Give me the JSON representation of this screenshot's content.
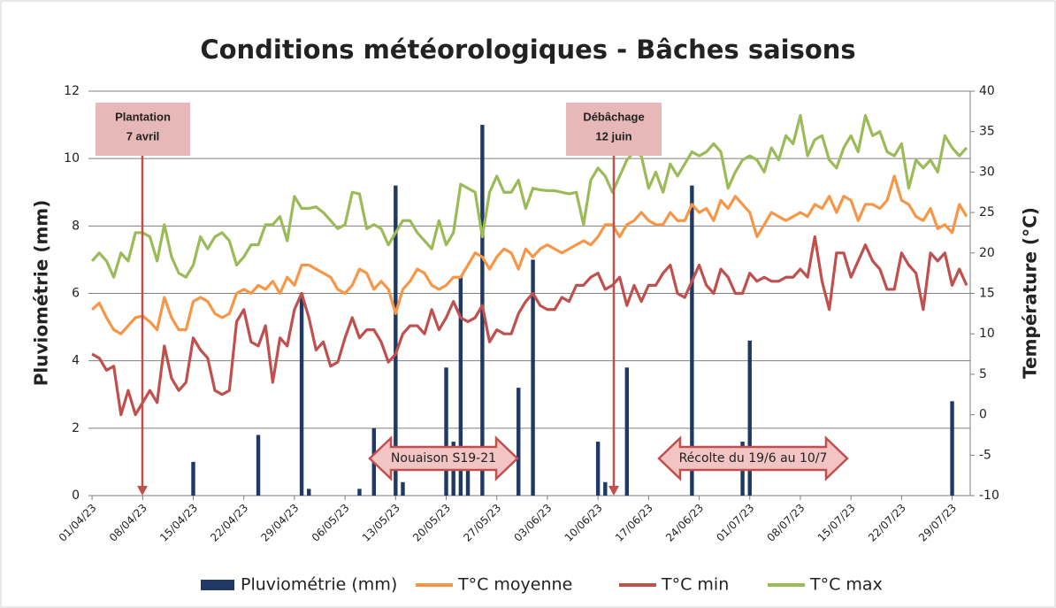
{
  "chart_data": {
    "type": "bar_line",
    "title": "Conditions météorologiques - Bâches saisons",
    "y_label": "Pluviométrie (mm)",
    "y2_label": "Température (°C)",
    "categories": [
      "01/04/23",
      null,
      null,
      null,
      null,
      null,
      null,
      "08/04/23",
      null,
      null,
      null,
      null,
      null,
      null,
      "15/04/23",
      null,
      null,
      null,
      null,
      null,
      null,
      "22/04/23",
      null,
      null,
      null,
      null,
      null,
      null,
      "29/04/23",
      null,
      null,
      null,
      null,
      null,
      null,
      "06/05/23",
      null,
      null,
      null,
      null,
      null,
      null,
      "13/05/23",
      null,
      null,
      null,
      null,
      null,
      null,
      "20/05/23",
      null,
      null,
      null,
      null,
      null,
      null,
      "27/05/23",
      null,
      null,
      null,
      null,
      null,
      null,
      "03/06/23",
      null,
      null,
      null,
      null,
      null,
      null,
      "10/06/23",
      null,
      null,
      null,
      null,
      null,
      null,
      "17/06/23",
      null,
      null,
      null,
      null,
      null,
      null,
      "24/06/23",
      null,
      null,
      null,
      null,
      null,
      null,
      "01/07/23",
      null,
      null,
      null,
      null,
      null,
      null,
      "08/07/23",
      null,
      null,
      null,
      null,
      null,
      null,
      "15/07/23",
      null,
      null,
      null,
      null,
      null,
      null,
      "22/07/23",
      null,
      null,
      null,
      null,
      null,
      null,
      "29/07/23",
      null,
      null
    ],
    "series": [
      {
        "name": "Pluviométrie (mm)",
        "kind": "bar",
        "color": "#1f3864",
        "values": [
          0,
          0,
          0,
          0,
          0,
          0,
          0,
          0,
          0,
          0,
          0,
          0,
          0,
          0,
          1,
          0,
          0,
          0,
          0,
          0,
          0,
          0,
          0,
          1.8,
          0,
          0,
          0,
          0,
          0,
          6,
          0.2,
          0,
          0,
          0,
          0,
          0,
          0,
          0.2,
          0,
          2,
          0,
          0,
          9.2,
          0.4,
          0,
          0,
          0,
          0,
          0,
          3.8,
          1.6,
          6.5,
          1,
          0,
          11,
          0,
          0,
          0,
          0,
          3.2,
          0,
          7,
          0,
          0,
          0,
          0,
          0,
          0,
          0,
          0,
          1.6,
          0.4,
          0,
          0,
          3.8,
          0,
          0,
          0,
          0,
          0,
          0,
          0,
          0,
          9.2,
          0,
          0,
          0,
          0,
          0,
          0,
          1.6,
          4.6,
          0,
          0,
          0,
          0,
          0,
          0,
          0,
          0,
          0,
          0,
          0,
          0,
          0,
          0,
          0,
          0,
          0,
          0,
          0,
          0,
          0,
          0,
          0,
          0,
          0,
          0,
          0,
          2.8,
          0,
          0
        ]
      },
      {
        "name": "T°C moyenne",
        "kind": "line",
        "axis": "y2",
        "color": "#f79646",
        "values": [
          13,
          13.8,
          12,
          10.5,
          10,
          11,
          12,
          12.2,
          11.5,
          10.5,
          14.5,
          12,
          10.5,
          10.5,
          14,
          14.5,
          14,
          12.5,
          12,
          12.5,
          15,
          15.5,
          15,
          16,
          15.5,
          16.5,
          15,
          17,
          16,
          18.5,
          18.5,
          18,
          17.5,
          17,
          15.5,
          15,
          16,
          18,
          17.5,
          15.5,
          16.5,
          15.5,
          12.5,
          15.5,
          16.5,
          18,
          17.5,
          16,
          15.5,
          16,
          17,
          17,
          18.5,
          20,
          19.5,
          18,
          19.5,
          20.5,
          20,
          18,
          20.5,
          19.5,
          20.5,
          21,
          20.5,
          20,
          20.5,
          21,
          21.5,
          21,
          22,
          23.5,
          23.5,
          22,
          23.5,
          24,
          25,
          24,
          23.5,
          23.5,
          25,
          24,
          24,
          26,
          25,
          25.5,
          24,
          26.5,
          25.5,
          27,
          26,
          25,
          22,
          23.5,
          25,
          24.5,
          24,
          24.5,
          25,
          24.5,
          26,
          25.5,
          27,
          25,
          27,
          26.5,
          24,
          26,
          26,
          25.5,
          26.5,
          29.5,
          26.5,
          26,
          24.5,
          24,
          25.5,
          23,
          23.5,
          22.5,
          26,
          24.5
        ]
      },
      {
        "name": "T°C min",
        "kind": "line",
        "axis": "y2",
        "color": "#c0504d",
        "values": [
          7.5,
          7,
          5.5,
          6,
          0,
          3,
          0,
          1.5,
          3,
          1.5,
          8.5,
          4.5,
          3,
          4,
          9.5,
          8,
          7,
          3,
          2.5,
          3,
          11.5,
          13,
          9,
          8.5,
          11,
          4,
          9.5,
          8.5,
          13,
          15,
          12,
          8,
          9,
          6,
          6.5,
          9.5,
          12,
          9.5,
          10.5,
          10.5,
          9,
          6.5,
          7.5,
          10,
          11,
          11,
          10,
          13,
          10.5,
          12,
          14,
          12,
          11.5,
          12,
          13.5,
          9,
          10.5,
          10,
          10,
          12.5,
          14,
          15,
          13.5,
          13,
          13,
          14.5,
          14,
          16,
          16,
          17,
          17.5,
          15.5,
          16,
          17,
          13.5,
          16,
          14,
          16,
          16,
          17.5,
          18.5,
          15,
          14.5,
          16.5,
          18.5,
          16,
          15,
          18,
          17,
          15,
          15,
          17.5,
          16.5,
          17,
          16.5,
          16.5,
          17,
          17,
          18,
          17,
          22,
          16.5,
          13,
          20,
          20,
          17,
          19,
          21,
          19,
          18,
          15.5,
          15.5,
          20,
          18.5,
          17.5,
          13,
          20,
          19,
          20,
          16,
          18,
          16
        ]
      },
      {
        "name": "T°C max",
        "kind": "line",
        "axis": "y2",
        "color": "#9bbb59",
        "values": [
          19,
          20,
          19,
          17,
          20,
          19,
          22.5,
          22.5,
          22,
          19,
          23.5,
          19.5,
          17.5,
          17,
          18.5,
          22,
          20.5,
          22,
          22.5,
          21.5,
          18.5,
          19.5,
          21,
          21,
          23.5,
          23.5,
          24.5,
          21.5,
          27,
          25.5,
          25.5,
          25.7,
          25,
          24,
          23,
          23.5,
          27.5,
          27.3,
          23,
          23.5,
          23,
          21,
          22.5,
          24,
          24,
          22.5,
          21.5,
          20.5,
          24,
          21,
          22.5,
          28.5,
          28,
          27.5,
          22,
          27.5,
          29.5,
          27.5,
          27.5,
          29,
          25.5,
          28,
          27.8,
          27.7,
          27.7,
          27.5,
          27.3,
          27.5,
          23.5,
          29,
          30.5,
          29.5,
          27.5,
          29.5,
          31.5,
          32.5,
          32,
          28,
          30,
          27.5,
          31,
          29.5,
          31,
          32.5,
          32,
          32.5,
          33.5,
          32.5,
          28,
          30,
          31.5,
          32,
          31.5,
          30,
          33,
          31.5,
          34.5,
          33.5,
          37,
          32,
          34,
          34.5,
          31.5,
          30.5,
          33,
          34.5,
          32.5,
          37,
          34.5,
          35,
          32.5,
          32,
          33.5,
          28,
          31.5,
          30.5,
          31.5,
          30,
          34.5,
          33,
          32,
          33
        ]
      }
    ],
    "ylim": [
      0,
      12
    ],
    "yticks": [
      0,
      2,
      4,
      6,
      8,
      10,
      12
    ],
    "y2lim": [
      -10,
      40
    ],
    "y2ticks": [
      -10,
      -5,
      0,
      5,
      10,
      15,
      20,
      25,
      30,
      35,
      40
    ],
    "grid": true,
    "legend": "bottom",
    "annotations": [
      {
        "lines": [
          "Plantation",
          "7 avril"
        ]
      },
      {
        "lines": [
          "Débâchage",
          "12 juin"
        ]
      },
      {
        "text": "Nouaison S19-21"
      },
      {
        "text": "Récolte du 19/6 au 10/7"
      }
    ]
  }
}
